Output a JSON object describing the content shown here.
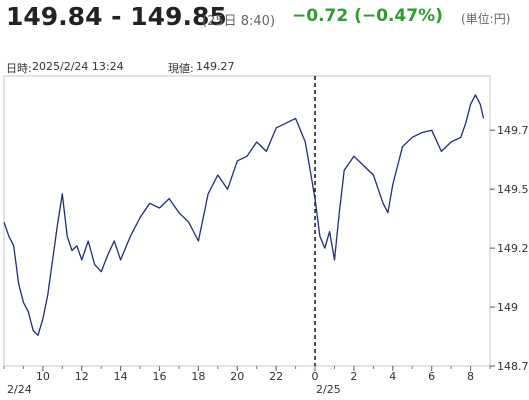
{
  "header": {
    "bid_ask": "149.84 - 149.85",
    "quote_time": "(25日 8:40)",
    "change": "−0.72 (−0.47%)",
    "unit": "(単位:円)",
    "colors": {
      "change": "#2f9a2f",
      "line": "#1f2d7a",
      "plot_border": "#c8c8c8"
    }
  },
  "info": {
    "datetime_label": "日時:",
    "datetime_value": "2025/2/24 13:24",
    "price_label": "現値:",
    "price_value": "149.27"
  },
  "chart_data": {
    "type": "line",
    "title": "",
    "xlabel": "",
    "ylabel": "",
    "grid": false,
    "y_axis_position": "right",
    "ylim": [
      148.75,
      149.98
    ],
    "yticks": [
      148.75,
      149,
      149.25,
      149.5,
      149.75
    ],
    "ytick_labels": [
      "148.75",
      "149",
      "149.25",
      "149.5",
      "149.75"
    ],
    "xlim": [
      "2/24 8:00",
      "2/25 9:00"
    ],
    "xticks": [
      "2/24 10:00",
      "2/24 12:00",
      "2/24 14:00",
      "2/24 16:00",
      "2/24 18:00",
      "2/24 20:00",
      "2/24 22:00",
      "2/25 0:00",
      "2/25 2:00",
      "2/25 4:00",
      "2/25 6:00",
      "2/25 8:00"
    ],
    "xtick_labels": [
      "10",
      "12",
      "14",
      "16",
      "18",
      "20",
      "22",
      "0",
      "2",
      "4",
      "6",
      "8"
    ],
    "date_labels": [
      "2/24",
      "2/25"
    ],
    "day_separator": "2/25 0:00",
    "series": [
      {
        "x": [
          "2/24 8:00",
          "2/24 8:15",
          "2/24 8:30",
          "2/24 8:45",
          "2/24 9:00",
          "2/24 9:15",
          "2/24 9:30",
          "2/24 9:45",
          "2/24 10:00",
          "2/24 10:15",
          "2/24 10:30",
          "2/24 10:45",
          "2/24 11:00",
          "2/24 11:15",
          "2/24 11:30",
          "2/24 11:45",
          "2/24 12:00",
          "2/24 12:20",
          "2/24 12:40",
          "2/24 13:00",
          "2/24 13:20",
          "2/24 13:40",
          "2/24 14:00",
          "2/24 14:30",
          "2/24 15:00",
          "2/24 15:30",
          "2/24 16:00",
          "2/24 16:30",
          "2/24 17:00",
          "2/24 17:30",
          "2/24 18:00",
          "2/24 18:30",
          "2/24 19:00",
          "2/24 19:30",
          "2/24 20:00",
          "2/24 20:30",
          "2/24 21:00",
          "2/24 21:30",
          "2/24 22:00",
          "2/24 22:30",
          "2/24 23:00",
          "2/24 23:30",
          "2/24 23:45",
          "2/25 0:00",
          "2/25 0:15",
          "2/25 0:30",
          "2/25 0:45",
          "2/25 1:00",
          "2/25 1:15",
          "2/25 1:30",
          "2/25 2:00",
          "2/25 2:30",
          "2/25 3:00",
          "2/25 3:15",
          "2/25 3:30",
          "2/25 3:45",
          "2/25 4:00",
          "2/25 4:30",
          "2/25 5:00",
          "2/25 5:30",
          "2/25 6:00",
          "2/25 6:30",
          "2/25 7:00",
          "2/25 7:30",
          "2/25 7:45",
          "2/25 8:00",
          "2/25 8:15",
          "2/25 8:30",
          "2/25 8:40"
        ],
        "y": [
          149.36,
          149.3,
          149.26,
          149.1,
          149.02,
          148.98,
          148.9,
          148.88,
          148.95,
          149.05,
          149.2,
          149.35,
          149.48,
          149.3,
          149.24,
          149.26,
          149.2,
          149.28,
          149.18,
          149.15,
          149.22,
          149.28,
          149.2,
          149.3,
          149.38,
          149.44,
          149.42,
          149.46,
          149.4,
          149.36,
          149.28,
          149.48,
          149.56,
          149.5,
          149.62,
          149.64,
          149.7,
          149.66,
          149.76,
          149.78,
          149.8,
          149.7,
          149.58,
          149.46,
          149.3,
          149.25,
          149.32,
          149.2,
          149.4,
          149.58,
          149.64,
          149.6,
          149.56,
          149.5,
          149.44,
          149.4,
          149.52,
          149.68,
          149.72,
          149.74,
          149.75,
          149.66,
          149.7,
          149.72,
          149.78,
          149.86,
          149.9,
          149.86,
          149.8
        ]
      }
    ]
  }
}
